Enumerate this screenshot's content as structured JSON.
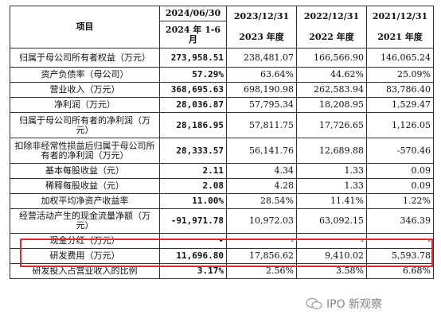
{
  "header": {
    "item_label": "项目",
    "periods": [
      "2024/06/30",
      "2023/12/31",
      "2022/12/31",
      "2021/12/31"
    ],
    "sub_periods": [
      "2024 年 1-6 月",
      "2023 年度",
      "2022 年度",
      "2021 年度"
    ]
  },
  "rows": [
    {
      "label": "归属于母公司所有者权益（万元）",
      "values": [
        "273,958.51",
        "238,481.07",
        "166,566.90",
        "146,065.24"
      ]
    },
    {
      "label": "资产负债率（母公司）",
      "values": [
        "57.29%",
        "63.64%",
        "44.62%",
        "25.09%"
      ]
    },
    {
      "label": "营业收入（万元）",
      "values": [
        "368,695.63",
        "698,190.98",
        "262,583.94",
        "83,786.40"
      ]
    },
    {
      "label": "净利润（万元）",
      "values": [
        "28,036.87",
        "57,795.34",
        "18,208.95",
        "1,529.47"
      ]
    },
    {
      "label": "归属于母公司所有者的净利润（万元）",
      "values": [
        "28,186.95",
        "57,811.75",
        "17,726.65",
        "1,126.05"
      ]
    },
    {
      "label": "扣除非经常性损益后归属于母公司所有者的净利润（万元）",
      "values": [
        "28,333.57",
        "56,141.76",
        "12,689.88",
        "-570.46"
      ]
    },
    {
      "label": "基本每股收益（元）",
      "values": [
        "2.11",
        "4.34",
        "1.33",
        "0.09"
      ]
    },
    {
      "label": "稀释每股收益（元）",
      "values": [
        "2.08",
        "4.28",
        "1.33",
        "0.09"
      ]
    },
    {
      "label": "加权平均净资产收益率",
      "values": [
        "11.00%",
        "28.54%",
        "11.41%",
        "1.22%"
      ]
    },
    {
      "label": "经营活动产生的现金流量净额（万元）",
      "values": [
        "-91,971.78",
        "10,972.03",
        "63,092.15",
        "346.39"
      ]
    },
    {
      "label": "现金分红（万元）",
      "values": [
        "-",
        "-",
        "-",
        "-"
      ]
    },
    {
      "label": "研发费用（万元）",
      "values": [
        "11,696.80",
        "17,856.62",
        "9,410.02",
        "5,593.78"
      ]
    },
    {
      "label": "研发投入占营业收入的比例",
      "values": [
        "3.17%",
        "2.56%",
        "3.58%",
        "6.68%"
      ]
    }
  ],
  "watermark": {
    "text": "IPO 新观察"
  },
  "colors": {
    "highlight": "#e0282e",
    "grid": "#333333"
  }
}
